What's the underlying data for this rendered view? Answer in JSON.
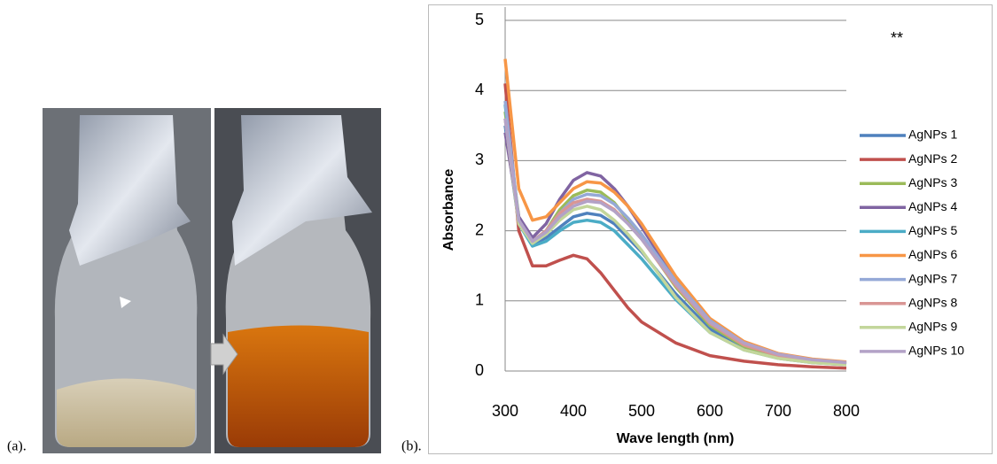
{
  "panel_labels": {
    "a": "(a).",
    "b": "(b)."
  },
  "chart_data": {
    "type": "line",
    "annotation": "**",
    "x_label": "Wave length (nm)",
    "y_label": "Absorbance",
    "x": [
      300,
      320,
      340,
      360,
      380,
      400,
      420,
      440,
      460,
      480,
      500,
      550,
      600,
      650,
      700,
      750,
      800
    ],
    "xlim": [
      300,
      800
    ],
    "xticks": [
      300,
      400,
      500,
      600,
      700,
      800
    ],
    "ylim": [
      0,
      5
    ],
    "yticks": [
      0,
      1,
      2,
      3,
      4,
      5
    ],
    "grid": true,
    "legend": "right",
    "series": [
      {
        "name": "AgNPs 1",
        "color": "#4f81bd",
        "values": [
          3.5,
          2.1,
          1.8,
          1.9,
          2.05,
          2.2,
          2.25,
          2.22,
          2.1,
          1.9,
          1.7,
          1.1,
          0.6,
          0.33,
          0.2,
          0.13,
          0.1
        ]
      },
      {
        "name": "AgNPs 2",
        "color": "#c0504d",
        "values": [
          4.1,
          2.0,
          1.5,
          1.5,
          1.58,
          1.65,
          1.6,
          1.4,
          1.15,
          0.9,
          0.7,
          0.4,
          0.22,
          0.14,
          0.09,
          0.06,
          0.04
        ]
      },
      {
        "name": "AgNPs 3",
        "color": "#9bbb59",
        "values": [
          3.7,
          2.2,
          1.85,
          2.0,
          2.3,
          2.5,
          2.58,
          2.55,
          2.4,
          2.15,
          1.9,
          1.2,
          0.65,
          0.35,
          0.2,
          0.14,
          0.1
        ]
      },
      {
        "name": "AgNPs 4",
        "color": "#8064a2",
        "values": [
          3.4,
          2.2,
          1.9,
          2.1,
          2.45,
          2.72,
          2.83,
          2.78,
          2.6,
          2.35,
          2.05,
          1.3,
          0.7,
          0.38,
          0.22,
          0.15,
          0.11
        ]
      },
      {
        "name": "AgNPs 5",
        "color": "#4bacc6",
        "values": [
          3.8,
          2.1,
          1.78,
          1.85,
          2.0,
          2.12,
          2.15,
          2.12,
          2.0,
          1.8,
          1.6,
          1.02,
          0.55,
          0.3,
          0.18,
          0.12,
          0.09
        ]
      },
      {
        "name": "AgNPs 6",
        "color": "#f79646",
        "values": [
          4.45,
          2.6,
          2.15,
          2.2,
          2.4,
          2.6,
          2.7,
          2.68,
          2.55,
          2.35,
          2.1,
          1.35,
          0.75,
          0.42,
          0.25,
          0.17,
          0.13
        ]
      },
      {
        "name": "AgNPs 7",
        "color": "#95a9d7",
        "values": [
          3.85,
          2.15,
          1.85,
          2.0,
          2.25,
          2.45,
          2.52,
          2.5,
          2.38,
          2.18,
          1.95,
          1.28,
          0.72,
          0.4,
          0.24,
          0.16,
          0.12
        ]
      },
      {
        "name": "AgNPs 8",
        "color": "#d99694",
        "values": [
          3.6,
          2.1,
          1.85,
          2.0,
          2.25,
          2.4,
          2.45,
          2.42,
          2.3,
          2.1,
          1.88,
          1.22,
          0.68,
          0.37,
          0.22,
          0.15,
          0.11
        ]
      },
      {
        "name": "AgNPs 9",
        "color": "#c3d69b",
        "values": [
          3.6,
          2.1,
          1.82,
          1.95,
          2.15,
          2.3,
          2.35,
          2.3,
          2.15,
          1.95,
          1.72,
          1.05,
          0.55,
          0.3,
          0.18,
          0.12,
          0.09
        ]
      },
      {
        "name": "AgNPs 10",
        "color": "#b3a2c7",
        "values": [
          3.6,
          2.15,
          1.85,
          1.98,
          2.2,
          2.35,
          2.42,
          2.4,
          2.28,
          2.1,
          1.88,
          1.25,
          0.7,
          0.4,
          0.24,
          0.16,
          0.12
        ]
      }
    ]
  }
}
